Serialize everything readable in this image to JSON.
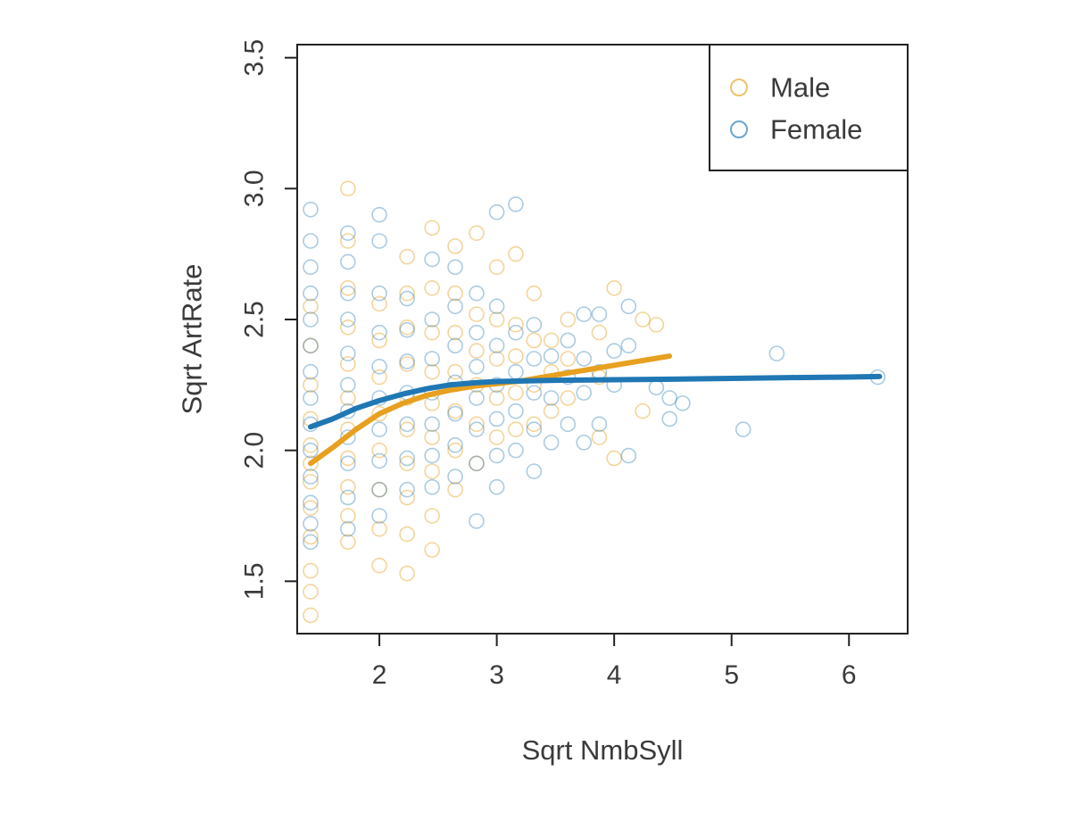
{
  "chart_data": {
    "type": "scatter",
    "title": "",
    "xlabel": "Sqrt NmbSyll",
    "ylabel": "Sqrt ArtRate",
    "xlim": [
      1.3,
      6.5
    ],
    "ylim": [
      1.3,
      3.55
    ],
    "x_ticks": [
      2,
      3,
      4,
      5,
      6
    ],
    "y_ticks": [
      1.5,
      2.0,
      2.5,
      3.0,
      3.5
    ],
    "x_tick_labels": [
      "2",
      "3",
      "4",
      "5",
      "6"
    ],
    "y_tick_labels": [
      "1.5",
      "2.0",
      "2.5",
      "3.0",
      "3.5"
    ],
    "grid": false,
    "legend_position": "top-right",
    "series": [
      {
        "name": "Male",
        "color": "#E7A01F",
        "points": [
          [
            1.414,
            1.37
          ],
          [
            1.414,
            1.46
          ],
          [
            1.414,
            1.54
          ],
          [
            1.414,
            1.67
          ],
          [
            1.414,
            1.78
          ],
          [
            1.414,
            1.88
          ],
          [
            1.414,
            1.95
          ],
          [
            1.414,
            2.02
          ],
          [
            1.414,
            2.12
          ],
          [
            1.414,
            2.25
          ],
          [
            1.414,
            2.4
          ],
          [
            1.414,
            2.55
          ],
          [
            1.732,
            1.65
          ],
          [
            1.732,
            1.75
          ],
          [
            1.732,
            1.86
          ],
          [
            1.732,
            1.97
          ],
          [
            1.732,
            2.08
          ],
          [
            1.732,
            2.2
          ],
          [
            1.732,
            2.33
          ],
          [
            1.732,
            2.47
          ],
          [
            1.732,
            2.62
          ],
          [
            1.732,
            2.8
          ],
          [
            1.732,
            3.0
          ],
          [
            2.0,
            1.56
          ],
          [
            2.0,
            1.7
          ],
          [
            2.0,
            1.85
          ],
          [
            2.0,
            2.0
          ],
          [
            2.0,
            2.14
          ],
          [
            2.0,
            2.28
          ],
          [
            2.0,
            2.42
          ],
          [
            2.0,
            2.56
          ],
          [
            2.236,
            1.53
          ],
          [
            2.236,
            1.68
          ],
          [
            2.236,
            1.82
          ],
          [
            2.236,
            1.95
          ],
          [
            2.236,
            2.08
          ],
          [
            2.236,
            2.2
          ],
          [
            2.236,
            2.33
          ],
          [
            2.236,
            2.47
          ],
          [
            2.236,
            2.6
          ],
          [
            2.236,
            2.74
          ],
          [
            2.449,
            1.62
          ],
          [
            2.449,
            1.75
          ],
          [
            2.449,
            1.92
          ],
          [
            2.449,
            2.05
          ],
          [
            2.449,
            2.18
          ],
          [
            2.449,
            2.3
          ],
          [
            2.449,
            2.45
          ],
          [
            2.449,
            2.62
          ],
          [
            2.449,
            2.85
          ],
          [
            2.646,
            1.85
          ],
          [
            2.646,
            2.0
          ],
          [
            2.646,
            2.15
          ],
          [
            2.646,
            2.3
          ],
          [
            2.646,
            2.45
          ],
          [
            2.646,
            2.6
          ],
          [
            2.646,
            2.78
          ],
          [
            2.828,
            1.95
          ],
          [
            2.828,
            2.1
          ],
          [
            2.828,
            2.25
          ],
          [
            2.828,
            2.38
          ],
          [
            2.828,
            2.52
          ],
          [
            2.828,
            2.83
          ],
          [
            3.0,
            2.05
          ],
          [
            3.0,
            2.2
          ],
          [
            3.0,
            2.35
          ],
          [
            3.0,
            2.5
          ],
          [
            3.0,
            2.7
          ],
          [
            3.162,
            2.08
          ],
          [
            3.162,
            2.22
          ],
          [
            3.162,
            2.36
          ],
          [
            3.162,
            2.48
          ],
          [
            3.162,
            2.75
          ],
          [
            3.317,
            2.1
          ],
          [
            3.317,
            2.25
          ],
          [
            3.317,
            2.42
          ],
          [
            3.317,
            2.6
          ],
          [
            3.464,
            2.15
          ],
          [
            3.464,
            2.3
          ],
          [
            3.464,
            2.42
          ],
          [
            3.606,
            2.2
          ],
          [
            3.606,
            2.35
          ],
          [
            3.606,
            2.5
          ],
          [
            3.873,
            2.05
          ],
          [
            3.873,
            2.28
          ],
          [
            3.873,
            2.45
          ],
          [
            4.0,
            1.97
          ],
          [
            4.0,
            2.62
          ],
          [
            4.243,
            2.15
          ],
          [
            4.243,
            2.5
          ],
          [
            4.359,
            2.48
          ]
        ],
        "curve": [
          [
            1.414,
            1.95
          ],
          [
            1.6,
            2.01
          ],
          [
            1.8,
            2.08
          ],
          [
            2.0,
            2.14
          ],
          [
            2.2,
            2.18
          ],
          [
            2.4,
            2.21
          ],
          [
            2.6,
            2.23
          ],
          [
            2.8,
            2.245
          ],
          [
            3.0,
            2.255
          ],
          [
            3.2,
            2.265
          ],
          [
            3.4,
            2.28
          ],
          [
            3.6,
            2.295
          ],
          [
            3.8,
            2.31
          ],
          [
            4.0,
            2.325
          ],
          [
            4.2,
            2.34
          ],
          [
            4.47,
            2.36
          ]
        ]
      },
      {
        "name": "Female",
        "color": "#1F77B4",
        "points": [
          [
            1.414,
            1.65
          ],
          [
            1.414,
            1.72
          ],
          [
            1.414,
            1.8
          ],
          [
            1.414,
            1.9
          ],
          [
            1.414,
            2.0
          ],
          [
            1.414,
            2.1
          ],
          [
            1.414,
            2.2
          ],
          [
            1.414,
            2.3
          ],
          [
            1.414,
            2.4
          ],
          [
            1.414,
            2.5
          ],
          [
            1.414,
            2.6
          ],
          [
            1.414,
            2.7
          ],
          [
            1.414,
            2.8
          ],
          [
            1.414,
            2.92
          ],
          [
            1.732,
            1.7
          ],
          [
            1.732,
            1.82
          ],
          [
            1.732,
            1.95
          ],
          [
            1.732,
            2.05
          ],
          [
            1.732,
            2.15
          ],
          [
            1.732,
            2.25
          ],
          [
            1.732,
            2.37
          ],
          [
            1.732,
            2.5
          ],
          [
            1.732,
            2.6
          ],
          [
            1.732,
            2.72
          ],
          [
            1.732,
            2.83
          ],
          [
            2.0,
            1.75
          ],
          [
            2.0,
            1.85
          ],
          [
            2.0,
            1.96
          ],
          [
            2.0,
            2.08
          ],
          [
            2.0,
            2.2
          ],
          [
            2.0,
            2.32
          ],
          [
            2.0,
            2.45
          ],
          [
            2.0,
            2.6
          ],
          [
            2.0,
            2.8
          ],
          [
            2.0,
            2.9
          ],
          [
            2.236,
            1.85
          ],
          [
            2.236,
            1.97
          ],
          [
            2.236,
            2.1
          ],
          [
            2.236,
            2.22
          ],
          [
            2.236,
            2.34
          ],
          [
            2.236,
            2.46
          ],
          [
            2.236,
            2.58
          ],
          [
            2.449,
            1.86
          ],
          [
            2.449,
            1.98
          ],
          [
            2.449,
            2.1
          ],
          [
            2.449,
            2.22
          ],
          [
            2.449,
            2.35
          ],
          [
            2.449,
            2.5
          ],
          [
            2.449,
            2.73
          ],
          [
            2.646,
            1.9
          ],
          [
            2.646,
            2.02
          ],
          [
            2.646,
            2.14
          ],
          [
            2.646,
            2.26
          ],
          [
            2.646,
            2.4
          ],
          [
            2.646,
            2.55
          ],
          [
            2.646,
            2.7
          ],
          [
            2.828,
            1.73
          ],
          [
            2.828,
            1.95
          ],
          [
            2.828,
            2.08
          ],
          [
            2.828,
            2.2
          ],
          [
            2.828,
            2.32
          ],
          [
            2.828,
            2.45
          ],
          [
            2.828,
            2.6
          ],
          [
            3.0,
            1.86
          ],
          [
            3.0,
            1.98
          ],
          [
            3.0,
            2.12
          ],
          [
            3.0,
            2.25
          ],
          [
            3.0,
            2.4
          ],
          [
            3.0,
            2.55
          ],
          [
            3.0,
            2.91
          ],
          [
            3.162,
            2.0
          ],
          [
            3.162,
            2.15
          ],
          [
            3.162,
            2.3
          ],
          [
            3.162,
            2.45
          ],
          [
            3.162,
            2.94
          ],
          [
            3.317,
            1.92
          ],
          [
            3.317,
            2.08
          ],
          [
            3.317,
            2.22
          ],
          [
            3.317,
            2.35
          ],
          [
            3.317,
            2.48
          ],
          [
            3.464,
            2.03
          ],
          [
            3.464,
            2.2
          ],
          [
            3.464,
            2.36
          ],
          [
            3.606,
            2.1
          ],
          [
            3.606,
            2.28
          ],
          [
            3.606,
            2.42
          ],
          [
            3.742,
            2.03
          ],
          [
            3.742,
            2.22
          ],
          [
            3.742,
            2.35
          ],
          [
            3.742,
            2.52
          ],
          [
            3.873,
            2.1
          ],
          [
            3.873,
            2.3
          ],
          [
            3.873,
            2.52
          ],
          [
            4.0,
            2.25
          ],
          [
            4.0,
            2.38
          ],
          [
            4.123,
            1.98
          ],
          [
            4.123,
            2.4
          ],
          [
            4.123,
            2.55
          ],
          [
            4.359,
            2.24
          ],
          [
            4.472,
            2.12
          ],
          [
            4.472,
            2.2
          ],
          [
            4.583,
            2.18
          ],
          [
            5.099,
            2.08
          ],
          [
            5.385,
            2.37
          ],
          [
            6.245,
            2.28
          ]
        ],
        "curve": [
          [
            1.414,
            2.09
          ],
          [
            1.6,
            2.12
          ],
          [
            1.8,
            2.16
          ],
          [
            2.0,
            2.19
          ],
          [
            2.2,
            2.215
          ],
          [
            2.4,
            2.235
          ],
          [
            2.6,
            2.25
          ],
          [
            2.8,
            2.258
          ],
          [
            3.0,
            2.263
          ],
          [
            3.5,
            2.268
          ],
          [
            4.0,
            2.27
          ],
          [
            4.5,
            2.272
          ],
          [
            5.0,
            2.275
          ],
          [
            5.5,
            2.278
          ],
          [
            6.0,
            2.28
          ],
          [
            6.26,
            2.282
          ]
        ]
      }
    ]
  }
}
